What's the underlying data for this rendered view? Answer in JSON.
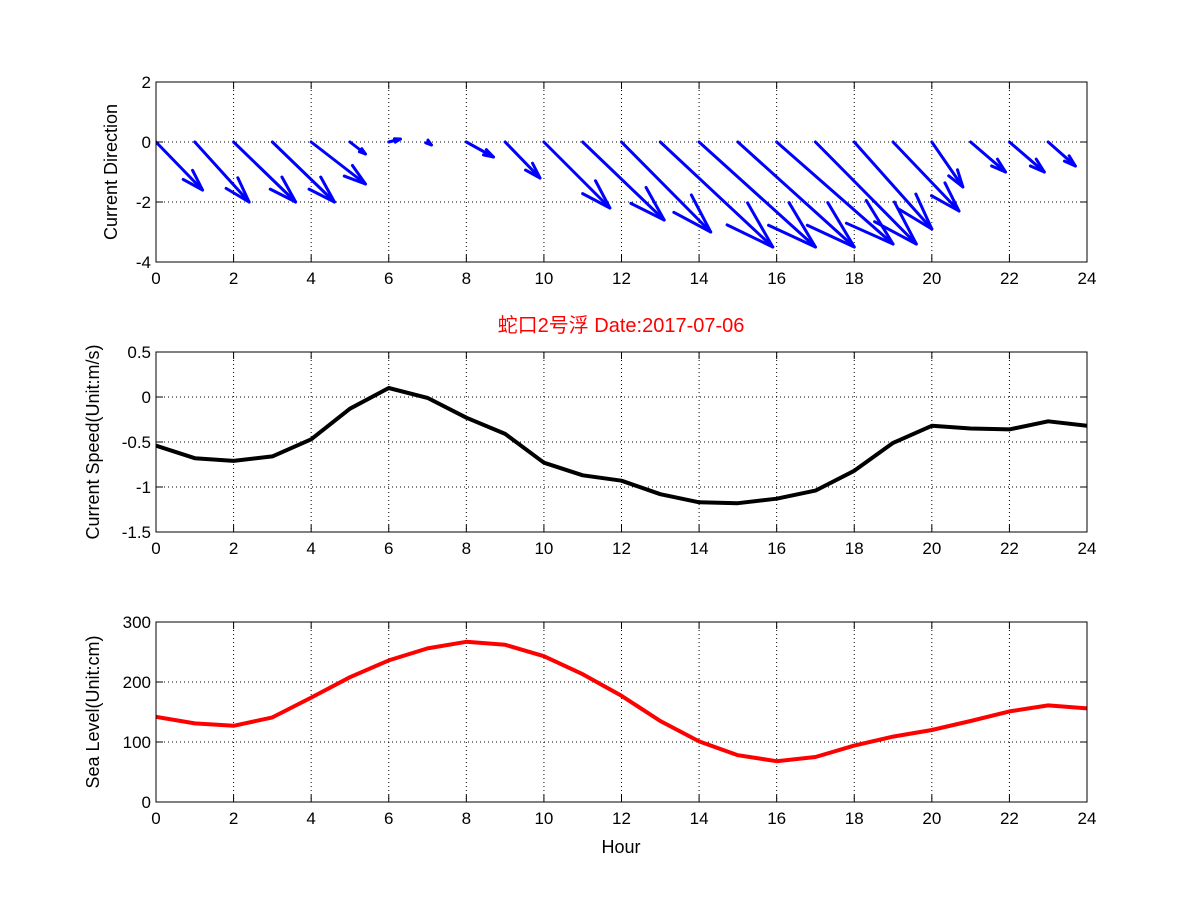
{
  "figure_title": "蛇口2号浮   Date:2017-07-06",
  "colors": {
    "direction": "#0000ff",
    "speed": "#000000",
    "sea_level": "#ff0000",
    "title": "#ff0000",
    "axes": "#000000",
    "grid": "#000000"
  },
  "chart_data": [
    {
      "type": "quiver",
      "id": "direction",
      "ylabel": "Current Direction",
      "xlabel": "",
      "xlim": [
        0,
        24
      ],
      "ylim": [
        -4,
        2
      ],
      "xticks": [
        0,
        2,
        4,
        6,
        8,
        10,
        12,
        14,
        16,
        18,
        20,
        22,
        24
      ],
      "yticks": [
        -4,
        -2,
        0,
        2
      ],
      "grid": true,
      "x": [
        0,
        1,
        2,
        3,
        4,
        5,
        6,
        7,
        8,
        9,
        10,
        11,
        12,
        13,
        14,
        15,
        16,
        17,
        18,
        19,
        20,
        21,
        22,
        23
      ],
      "u": [
        1.2,
        1.4,
        1.6,
        1.6,
        1.4,
        0.4,
        0.3,
        0.1,
        0.7,
        0.9,
        1.7,
        2.1,
        2.3,
        2.9,
        3.0,
        3.0,
        3.0,
        2.6,
        2.0,
        1.7,
        0.8,
        0.9,
        0.9,
        0.7
      ],
      "v": [
        -1.6,
        -2.0,
        -2.0,
        -2.0,
        -1.4,
        -0.4,
        0.1,
        -0.1,
        -0.5,
        -1.2,
        -2.2,
        -2.6,
        -3.0,
        -3.5,
        -3.5,
        -3.5,
        -3.4,
        -3.4,
        -2.9,
        -2.3,
        -1.5,
        -1.0,
        -1.0,
        -0.8
      ]
    },
    {
      "type": "line",
      "id": "speed",
      "ylabel": "Current Speed(Unit:m/s)",
      "xlabel": "",
      "xlim": [
        0,
        24
      ],
      "ylim": [
        -1.5,
        0.5
      ],
      "xticks": [
        0,
        2,
        4,
        6,
        8,
        10,
        12,
        14,
        16,
        18,
        20,
        22,
        24
      ],
      "yticks": [
        -1.5,
        -1,
        -0.5,
        0,
        0.5
      ],
      "grid": true,
      "x": [
        0,
        1,
        2,
        3,
        4,
        5,
        6,
        7,
        8,
        9,
        10,
        11,
        12,
        13,
        14,
        15,
        16,
        17,
        18,
        19,
        20,
        21,
        22,
        23,
        24
      ],
      "y": [
        -0.54,
        -0.68,
        -0.71,
        -0.66,
        -0.47,
        -0.13,
        0.1,
        -0.01,
        -0.23,
        -0.41,
        -0.73,
        -0.87,
        -0.93,
        -1.08,
        -1.17,
        -1.18,
        -1.13,
        -1.04,
        -0.82,
        -0.51,
        -0.32,
        -0.35,
        -0.36,
        -0.27,
        -0.32
      ]
    },
    {
      "type": "line",
      "id": "sea_level",
      "ylabel": "Sea Level(Unit:cm)",
      "xlabel": "Hour",
      "xlim": [
        0,
        24
      ],
      "ylim": [
        0,
        300
      ],
      "xticks": [
        0,
        2,
        4,
        6,
        8,
        10,
        12,
        14,
        16,
        18,
        20,
        22,
        24
      ],
      "yticks": [
        0,
        100,
        200,
        300
      ],
      "grid": true,
      "x": [
        0,
        1,
        2,
        3,
        4,
        5,
        6,
        7,
        8,
        9,
        10,
        11,
        12,
        13,
        14,
        15,
        16,
        17,
        18,
        19,
        20,
        21,
        22,
        23,
        24
      ],
      "y": [
        142,
        131,
        127,
        141,
        174,
        208,
        236,
        256,
        267,
        262,
        243,
        213,
        177,
        135,
        101,
        78,
        68,
        75,
        94,
        109,
        120,
        135,
        151,
        161,
        156
      ]
    }
  ]
}
